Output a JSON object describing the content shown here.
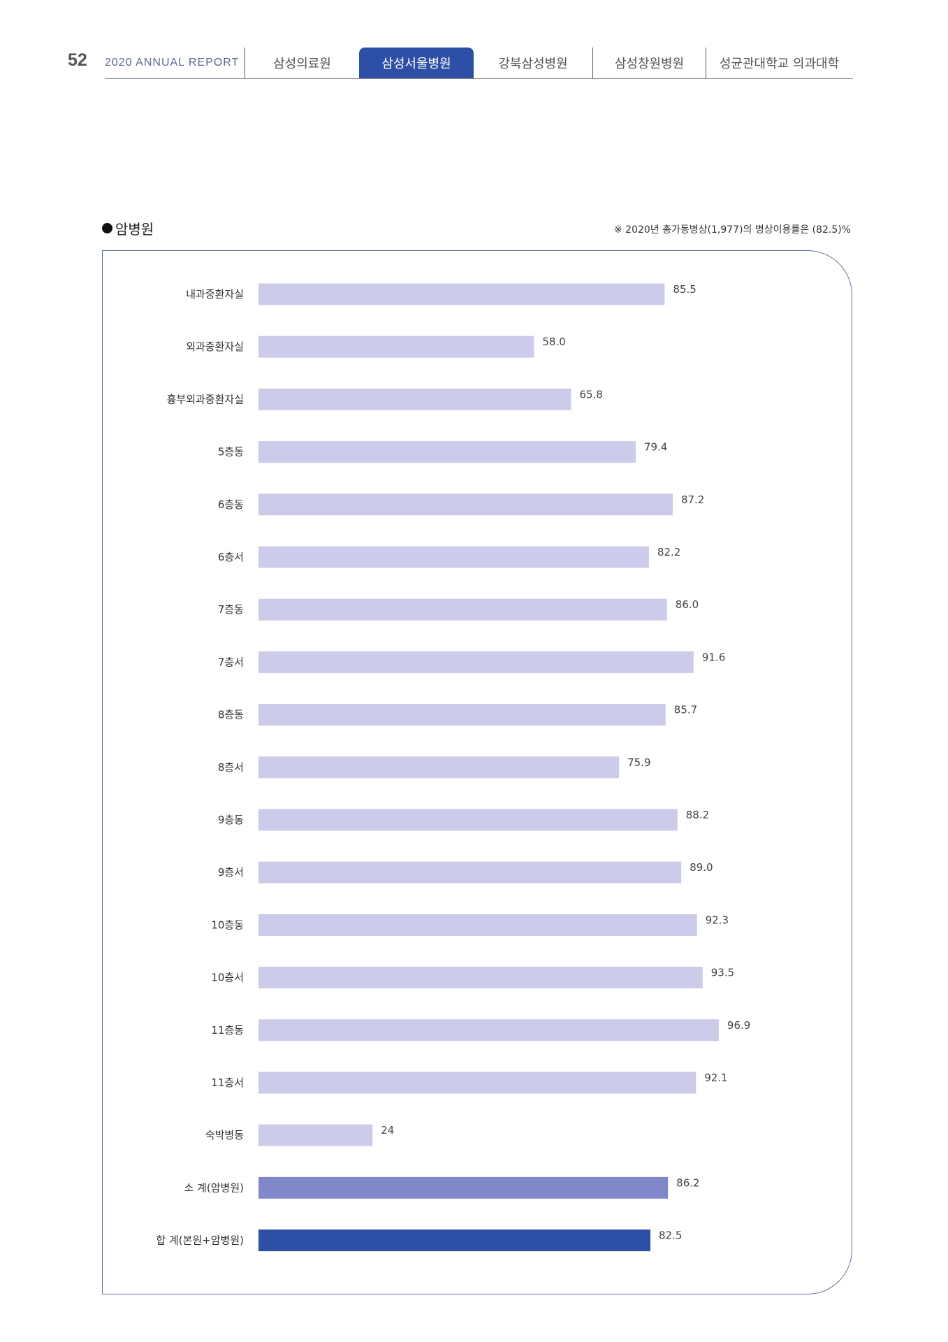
{
  "header": {
    "page_number": "52",
    "report_title": "2020 ANNUAL REPORT",
    "tabs": [
      {
        "label": "삼성의료원",
        "active": false
      },
      {
        "label": "삼성서울병원",
        "active": true
      },
      {
        "label": "강북삼성병원",
        "active": false
      },
      {
        "label": "삼성창원병원",
        "active": false
      },
      {
        "label": "성균관대학교 의과대학",
        "active": false
      }
    ]
  },
  "section": {
    "title": "암병원",
    "note": "※ 2020년 총가동병상(1,977)의 병상이용률은 (82.5)%"
  },
  "colors": {
    "bar_regular": "#cccbea",
    "bar_subtotal": "#8088c9",
    "bar_total": "#2e4fa6",
    "accent": "#2e4fa6"
  },
  "chart_data": {
    "type": "bar",
    "orientation": "horizontal",
    "categories": [
      "내과중환자실",
      "외과중환자실",
      "흉부외과중환자실",
      "5층동",
      "6층동",
      "6층서",
      "7층동",
      "7층서",
      "8층동",
      "8층서",
      "9층동",
      "9층서",
      "10층동",
      "10층서",
      "11층동",
      "11층서",
      "숙박병동",
      "소 계(암병원)",
      "합 계(본원+암병원)"
    ],
    "values": [
      85.5,
      58.0,
      65.8,
      79.4,
      87.2,
      82.2,
      86.0,
      91.6,
      85.7,
      75.9,
      88.2,
      89.0,
      92.3,
      93.5,
      96.9,
      92.1,
      24,
      86.2,
      82.5
    ],
    "value_labels": [
      "85.5",
      "58.0",
      "65.8",
      "79.4",
      "87.2",
      "82.2",
      "86.0",
      "91.6",
      "85.7",
      "75.9",
      "88.2",
      "89.0",
      "92.3",
      "93.5",
      "96.9",
      "92.1",
      "24",
      "86.2",
      "82.5"
    ],
    "bar_kinds": [
      "regular",
      "regular",
      "regular",
      "regular",
      "regular",
      "regular",
      "regular",
      "regular",
      "regular",
      "regular",
      "regular",
      "regular",
      "regular",
      "regular",
      "regular",
      "regular",
      "regular",
      "subtotal",
      "total"
    ],
    "xlim": [
      0,
      100
    ],
    "grid": false,
    "legend": "none"
  }
}
